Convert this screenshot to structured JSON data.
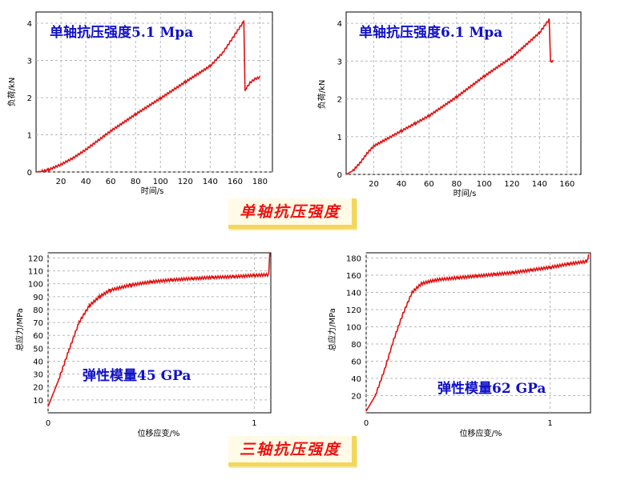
{
  "banners": {
    "uniaxial": "单轴抗压强度",
    "triaxial": "三轴抗压强度"
  },
  "colors": {
    "curve": "#e01010",
    "grid": "#b8b8b8",
    "frame": "#000000",
    "title_text": "#1010c8",
    "banner_text": "#ee1111",
    "banner_shadow": "#f2d75a"
  },
  "chart_data": [
    {
      "type": "line",
      "title": "单轴抗压强度5.1 Mpa",
      "xlabel": "时间/s",
      "ylabel": "负荷/kN",
      "xlim": [
        0,
        190
      ],
      "ylim": [
        0,
        4.3
      ],
      "xticks": [
        20,
        40,
        60,
        80,
        100,
        120,
        140,
        160,
        180
      ],
      "yticks": [
        0,
        1,
        2,
        3,
        4
      ],
      "grid": true,
      "series": [
        {
          "x": [
            0,
            5,
            10,
            20,
            30,
            40,
            50,
            60,
            80,
            100,
            120,
            140,
            150,
            160,
            166,
            167,
            168,
            172,
            176,
            180
          ],
          "y": [
            0,
            0.02,
            0.06,
            0.2,
            0.38,
            0.6,
            0.85,
            1.1,
            1.55,
            1.98,
            2.42,
            2.85,
            3.2,
            3.7,
            4.0,
            4.05,
            2.2,
            2.4,
            2.5,
            2.55
          ]
        }
      ]
    },
    {
      "type": "line",
      "title": "单轴抗压强度6.1 Mpa",
      "xlabel": "时间/s",
      "ylabel": "负荷/kN",
      "xlim": [
        0,
        170
      ],
      "ylim": [
        0,
        4.3
      ],
      "xticks": [
        20,
        40,
        60,
        80,
        100,
        120,
        140,
        160
      ],
      "yticks": [
        0,
        1,
        2,
        3,
        4
      ],
      "grid": true,
      "series": [
        {
          "x": [
            0,
            5,
            10,
            15,
            20,
            25,
            30,
            40,
            50,
            60,
            80,
            100,
            120,
            140,
            147,
            148,
            150
          ],
          "y": [
            0,
            0.1,
            0.3,
            0.55,
            0.75,
            0.85,
            0.95,
            1.15,
            1.35,
            1.55,
            2.05,
            2.6,
            3.1,
            3.75,
            4.1,
            3.0,
            3.0
          ]
        }
      ]
    },
    {
      "type": "line",
      "title": "弹性模量45 GPa",
      "xlabel": "位移应变/%",
      "ylabel": "总应力/MPa",
      "xlim": [
        0,
        1.08
      ],
      "ylim": [
        0,
        124
      ],
      "xticks": [
        0,
        1
      ],
      "yticks": [
        10,
        20,
        30,
        40,
        50,
        60,
        70,
        80,
        90,
        100,
        110,
        120
      ],
      "grid": true,
      "series": [
        {
          "x": [
            0,
            0.05,
            0.1,
            0.15,
            0.2,
            0.25,
            0.3,
            0.4,
            0.5,
            0.6,
            0.7,
            0.8,
            0.9,
            1.0,
            1.07,
            1.075
          ],
          "y": [
            5,
            25,
            48,
            70,
            83,
            90,
            95,
            99,
            101.5,
            103,
            104,
            105,
            105.5,
            106.5,
            107,
            125
          ]
        }
      ]
    },
    {
      "type": "line",
      "title": "弹性模量62 GPa",
      "xlabel": "位移应变/%",
      "ylabel": "总应力/MPa",
      "xlim": [
        0,
        1.22
      ],
      "ylim": [
        0,
        186
      ],
      "xticks": [
        0,
        1
      ],
      "yticks": [
        20,
        40,
        60,
        80,
        100,
        120,
        140,
        160,
        180
      ],
      "grid": true,
      "series": [
        {
          "x": [
            0,
            0.05,
            0.1,
            0.15,
            0.2,
            0.25,
            0.3,
            0.35,
            0.4,
            0.5,
            0.6,
            0.7,
            0.8,
            0.9,
            1.0,
            1.1,
            1.2,
            1.21
          ],
          "y": [
            2,
            20,
            50,
            85,
            115,
            140,
            150,
            153,
            155,
            157,
            159,
            161,
            163,
            166,
            169,
            173,
            176,
            183
          ]
        }
      ]
    }
  ]
}
